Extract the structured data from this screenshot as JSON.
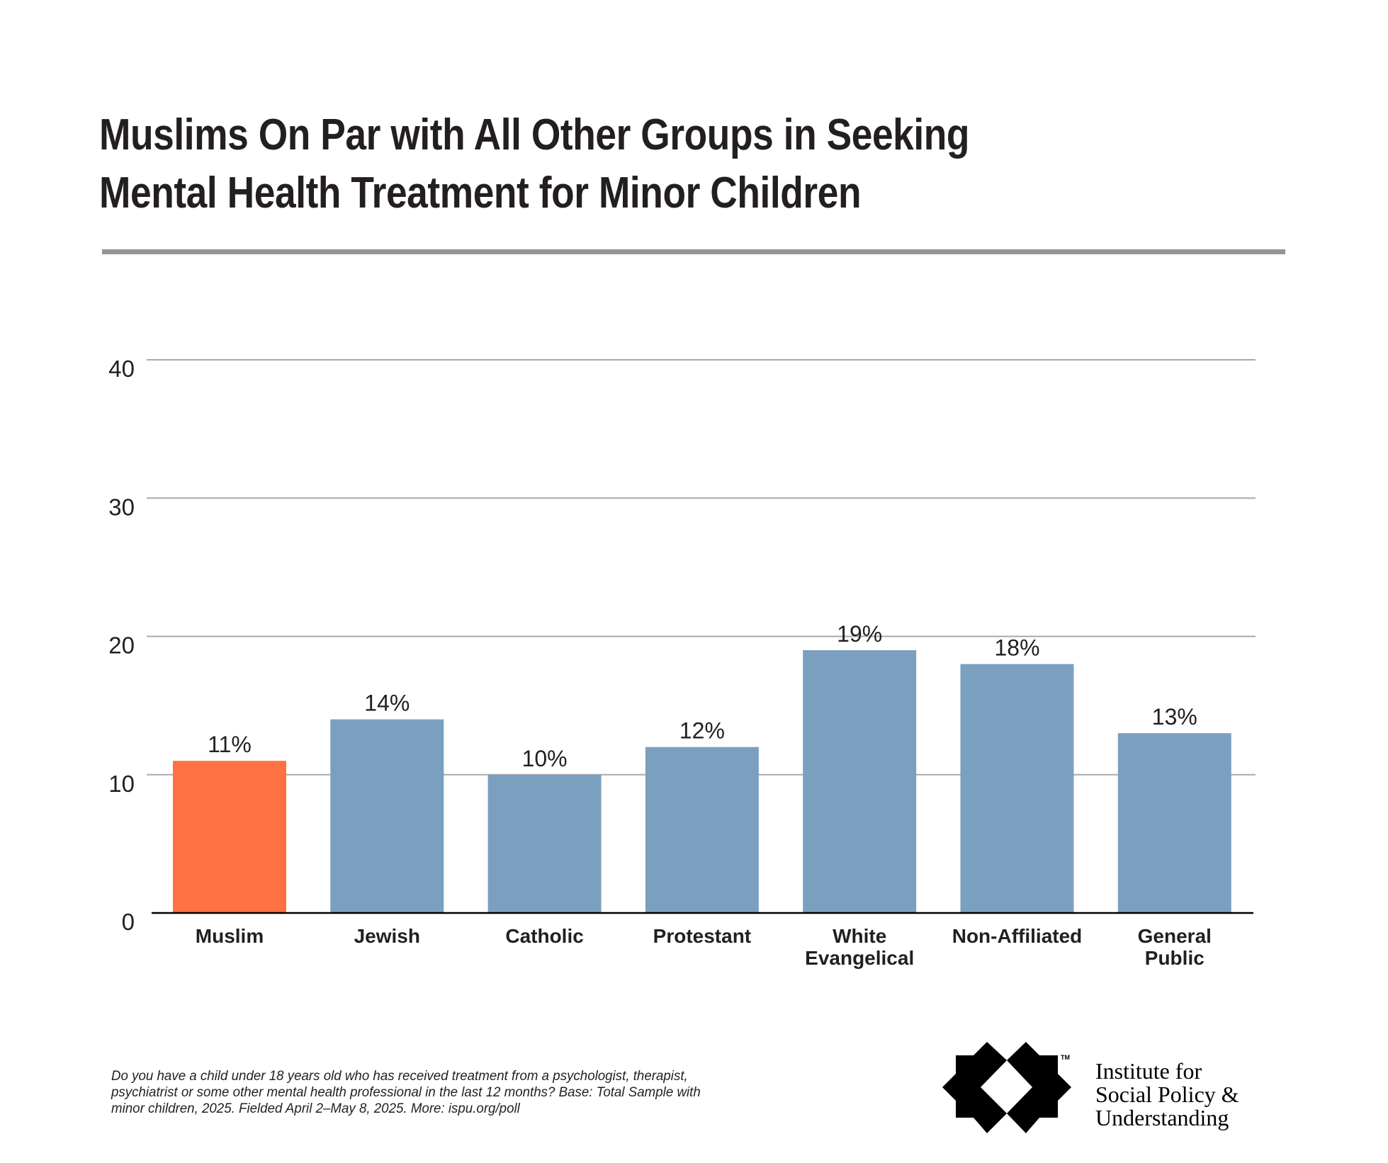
{
  "title": {
    "line1": "Muslims On Par with All Other Groups in Seeking",
    "line2": "Mental Health Treatment for Minor Children"
  },
  "chart_data": {
    "type": "bar",
    "title": "Muslims On Par with All Other Groups in Seeking Mental Health Treatment for Minor Children",
    "xlabel": "",
    "ylabel": "",
    "categories": [
      {
        "label_lines": [
          "Muslim"
        ],
        "label": "Muslim"
      },
      {
        "label_lines": [
          "Jewish"
        ],
        "label": "Jewish"
      },
      {
        "label_lines": [
          "Catholic"
        ],
        "label": "Catholic"
      },
      {
        "label_lines": [
          "Protestant"
        ],
        "label": "Protestant"
      },
      {
        "label_lines": [
          "White",
          "Evangelical"
        ],
        "label": "White Evangelical"
      },
      {
        "label_lines": [
          "Non-Affiliated"
        ],
        "label": "Non-Affiliated"
      },
      {
        "label_lines": [
          "General",
          "Public"
        ],
        "label": "General Public"
      }
    ],
    "values": [
      11,
      14,
      10,
      12,
      19,
      18,
      13
    ],
    "value_labels": [
      "11%",
      "14%",
      "10%",
      "12%",
      "19%",
      "18%",
      "13%"
    ],
    "highlight_index": 0,
    "colors": {
      "highlight": "#ff7043",
      "default": "#7b9fbf",
      "grid": "#a7a9ac",
      "axis": "#000000"
    },
    "ylim": [
      0,
      40
    ],
    "yticks": [
      0,
      10,
      20,
      30,
      40
    ],
    "ytick_labels": [
      "0",
      "10",
      "20",
      "30",
      "40"
    ],
    "grid": true,
    "legend": "none"
  },
  "footnote": {
    "line1": "Do you have a child under 18 years old who has received treatment from a psychologist, therapist,",
    "line2": "psychiatrist or some other mental health professional in the last 12 months? Base: Total Sample with",
    "line3": "minor children, 2025. Fielded April 2–May 8, 2025. More: ispu.org/poll"
  },
  "logo": {
    "icon": "ispu-star-logo-icon",
    "trademark": "TM",
    "line1": "Institute for",
    "line2": "Social Policy &",
    "line3": "Understanding"
  }
}
